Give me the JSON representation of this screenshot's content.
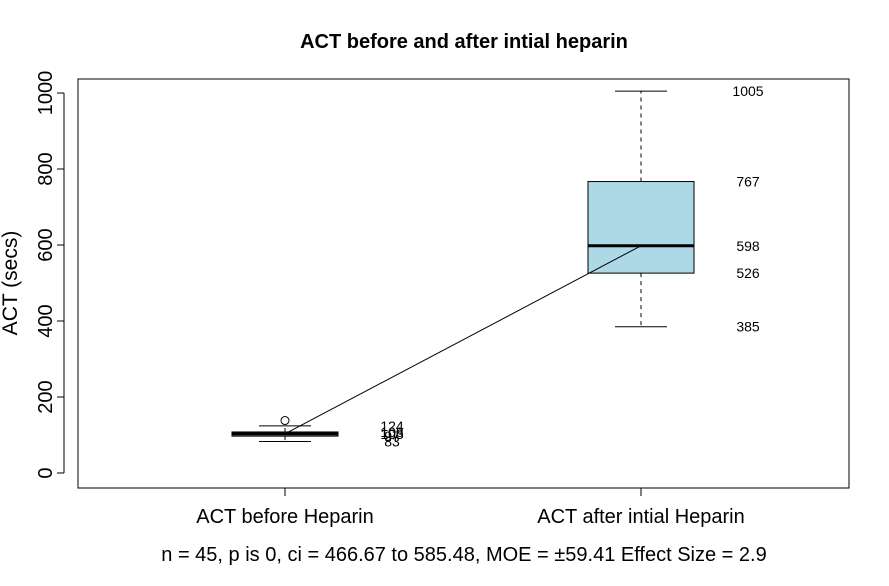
{
  "chart_data": {
    "type": "box",
    "title": "ACT before and after intial heparin",
    "xlabel": "",
    "ylabel": "ACT (secs)",
    "ylim": [
      -40,
      1040
    ],
    "yticks": [
      0,
      200,
      400,
      600,
      800,
      1000
    ],
    "categories": [
      "ACT before Heparin",
      "ACT after intial Heparin"
    ],
    "boxes": [
      {
        "category": "ACT before Heparin",
        "min": 83,
        "q1": 97,
        "median": 103,
        "q3": 108,
        "max": 124,
        "outliers": [
          138
        ],
        "color": "#d3d3d3",
        "stat_labels": [
          "124",
          "108",
          "103",
          "97",
          "83"
        ]
      },
      {
        "category": "ACT after intial Heparin",
        "min": 385,
        "q1": 526,
        "median": 598,
        "q3": 767,
        "max": 1005,
        "outliers": [],
        "color": "#add8e6",
        "stat_labels": [
          "1005",
          "767",
          "598",
          "526",
          "385"
        ]
      }
    ],
    "connect_medians": true,
    "grid": false,
    "legend": "none"
  },
  "caption": "n = 45, p is 0, ci = 466.67 to 585.48, MOE = ±59.41 Effect Size = 2.9"
}
